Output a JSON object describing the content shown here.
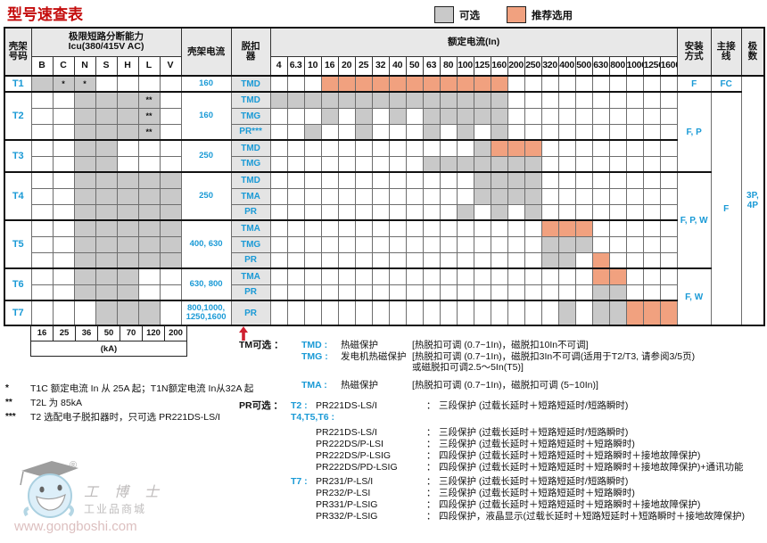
{
  "title": "型号速查表",
  "legend": {
    "optional_label": "可选",
    "recommended_label": "推荐选用"
  },
  "colors": {
    "optional": "#c9c9c9",
    "recommended": "#f1a17f",
    "blue": "#1a9ad6",
    "red": "#cf2030",
    "title_red": "#c40c0c"
  },
  "table": {
    "header": {
      "frame_no": "壳架\n号码",
      "icu": "极限短路分断能力\nIcu(380/415V AC)",
      "frame_current": "壳架电流",
      "trip": "脱扣\n器",
      "rated_current": "额定电流(In)",
      "install": "安装\n方式",
      "wiring": "主接\n线",
      "poles": "极\n数"
    },
    "icu_cols": [
      "B",
      "C",
      "N",
      "S",
      "H",
      "L",
      "V"
    ],
    "in_ticks": [
      "4",
      "6.3",
      "10",
      "16",
      "20",
      "25",
      "32",
      "40",
      "50",
      "63",
      "80",
      "100",
      "125",
      "160",
      "200",
      "250",
      "320",
      "400",
      "500",
      "630",
      "800",
      "1000",
      "1250",
      "1600"
    ],
    "groups": [
      {
        "frame": "T1",
        "current": "160",
        "icu": [
          "g",
          "g*",
          "g*",
          "",
          "",
          "",
          ""
        ],
        "rows": [
          {
            "trip": "TMD",
            "in": "...ooooooooooo.........."
          }
        ]
      },
      {
        "frame": "T2",
        "current": "160",
        "icu": [
          "",
          "",
          "g",
          "g",
          "g",
          "g**",
          ""
        ],
        "rows": [
          {
            "trip": "TMD",
            "in": "gggggggggggggg.........."
          },
          {
            "trip": "TMG",
            "in": "...g.g.g.ggggg.........."
          },
          {
            "trip": "PR***",
            "in": "..g..g...g.g.g.........."
          }
        ]
      },
      {
        "frame": "T3",
        "current": "250",
        "icu": [
          "",
          "",
          "g",
          "g",
          "",
          "",
          ""
        ],
        "rows": [
          {
            "trip": "TMD",
            "in": "............gooo........"
          },
          {
            "trip": "TMG",
            "in": ".........ggggggg........"
          }
        ]
      },
      {
        "frame": "T4",
        "current": "250",
        "icu": [
          "",
          "",
          "g",
          "g",
          "g",
          "g",
          "g"
        ],
        "rows": [
          {
            "trip": "TMD",
            "in": "............gggg........"
          },
          {
            "trip": "TMA",
            "in": "............gggg........"
          },
          {
            "trip": "PR",
            "in": "...........g.g.g........"
          }
        ]
      },
      {
        "frame": "T5",
        "current": "400, 630",
        "icu": [
          "",
          "",
          "g",
          "g",
          "g",
          "g",
          "g"
        ],
        "rows": [
          {
            "trip": "TMA",
            "in": "................ooo....."
          },
          {
            "trip": "TMG",
            "in": "................ggg....."
          },
          {
            "trip": "PR",
            "in": "................gg.o...."
          }
        ]
      },
      {
        "frame": "T6",
        "current": "630, 800",
        "icu": [
          "",
          "",
          "g",
          "g",
          "g",
          "",
          ""
        ],
        "rows": [
          {
            "trip": "TMA",
            "in": "...................oo..."
          },
          {
            "trip": "PR",
            "in": "...................gg..."
          }
        ]
      },
      {
        "frame": "T7",
        "current": "800,1000,\n1250,1600",
        "icu": [
          "",
          "",
          "",
          "g",
          "g",
          "g",
          ""
        ],
        "rows": [
          {
            "trip": "PR",
            "in": ".................g.ggooo"
          }
        ]
      }
    ],
    "install_cells": [
      {
        "rows": 1,
        "label": "F"
      },
      {
        "rows": 5,
        "label": "F, P"
      },
      {
        "rows": 6,
        "label": "F, P, W"
      },
      {
        "rows": 3,
        "label": "F, W"
      }
    ],
    "wiring_cells": [
      {
        "rows": 1,
        "label": "FC"
      },
      {
        "rows": 14,
        "label": "F"
      }
    ],
    "poles_cells": [
      {
        "rows": 15,
        "label": "3P, 4P"
      }
    ],
    "icu_values": [
      "16",
      "25",
      "36",
      "50",
      "70",
      "120",
      "200"
    ],
    "icu_unit": "(kA)"
  },
  "footnotes": [
    {
      "marker": "*",
      "text": "T1C 额定电流 In 从 25A 起；T1N额定电流 In从32A 起"
    },
    {
      "marker": "**",
      "text": "T2L 为 85kA"
    },
    {
      "marker": "***",
      "text": "T2 选配电子脱扣器时，只可选 PR221DS-LS/I"
    }
  ],
  "tm_section": {
    "label": "TM可选 ：",
    "items": [
      {
        "code": "TMD :",
        "name": "热磁保护",
        "desc": "[热脱扣可调 (0.7~1In)，磁脱扣10In不可调]",
        "gap": false
      },
      {
        "code": "TMG :",
        "name": "发电机热磁保护",
        "desc": "[热脱扣可调 (0.7~1In)，磁脱扣3In不可调(适用于T2/T3, 请参阅3/5页)\n或磁脱扣可调2.5～5In(T5)]",
        "gap": false
      },
      {
        "code": "TMA :",
        "name": "热磁保护",
        "desc": "[热脱扣可调 (0.7~1In)，磁脱扣可调 (5~10In)]",
        "gap": true
      }
    ]
  },
  "pr_section": {
    "label": "PR可选 ：",
    "colon": "：",
    "lines": [
      {
        "frames": "T2 :",
        "model": "PR221DS-LS/I",
        "desc": "三段保护 (过载长延时＋短路短延时/短路瞬时)",
        "gap": ""
      },
      {
        "frames": "T4,T5,T6 :",
        "model": "",
        "desc": "",
        "gap": ""
      },
      {
        "frames": "",
        "model": "PR221DS-LS/I",
        "desc": "三段保护 (过载长延时＋短路短延时/短路瞬时)",
        "gap": "gap4"
      },
      {
        "frames": "",
        "model": "PR222DS/P-LSI",
        "desc": "三段保护 (过载长延时＋短路短延时＋短路瞬时)",
        "gap": ""
      },
      {
        "frames": "",
        "model": "PR222DS/P-LSIG",
        "desc": "四段保护 (过载长延时＋短路短延时＋短路瞬时＋接地故障保护)",
        "gap": ""
      },
      {
        "frames": "",
        "model": "PR222DS/PD-LSIG",
        "desc": "四段保护 (过载长延时＋短路短延时＋短路瞬时＋接地故障保护)+通讯功能",
        "gap": ""
      },
      {
        "frames": "T7 :",
        "model": "PR231/P-LS/I",
        "desc": "三段保护 (过载长延时＋短路短延时/短路瞬时)",
        "gap": "gap3"
      },
      {
        "frames": "",
        "model": "PR232/P-LSI",
        "desc": "三段保护 (过载长延时＋短路短延时＋短路瞬时)",
        "gap": ""
      },
      {
        "frames": "",
        "model": "PR331/P-LSIG",
        "desc": "四段保护 (过载长延时＋短路短延时＋短路瞬时＋接地故障保护)",
        "gap": ""
      },
      {
        "frames": "",
        "model": "PR332/P-LSIG",
        "desc": "四段保护，液晶显示(过载长延时＋短路短延时＋短路瞬时＋接地故障保护)",
        "gap": ""
      }
    ]
  },
  "watermark": {
    "reg": "®",
    "brand": "工 博 士",
    "sub": "工业品商城",
    "url": "www.gongboshi.com"
  }
}
